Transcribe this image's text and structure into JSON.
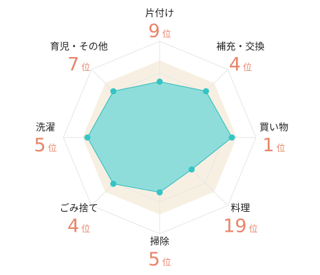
{
  "chart_data": {
    "type": "radar",
    "rank_unit": "位",
    "categories": [
      "片付け",
      "補充・交換",
      "買い物",
      "料理",
      "掃除",
      "ごみ捨て",
      "洗濯",
      "育児・その他"
    ],
    "ranks": [
      9,
      4,
      1,
      19,
      5,
      4,
      5,
      7
    ],
    "values": [
      0.58,
      0.68,
      0.75,
      0.47,
      0.57,
      0.68,
      0.75,
      0.68
    ],
    "reference_level": 0.8,
    "grid_levels": [
      0.333,
      0.667,
      1.0
    ],
    "colors": {
      "data_fill": "#7dd9d9",
      "data_stroke": "#3cc1c1",
      "data_point": "#35c4c4",
      "reference_fill": "#f7f0e2",
      "grid": "#e6e6e6",
      "rank": "#e8846a",
      "label": "#222222"
    }
  }
}
